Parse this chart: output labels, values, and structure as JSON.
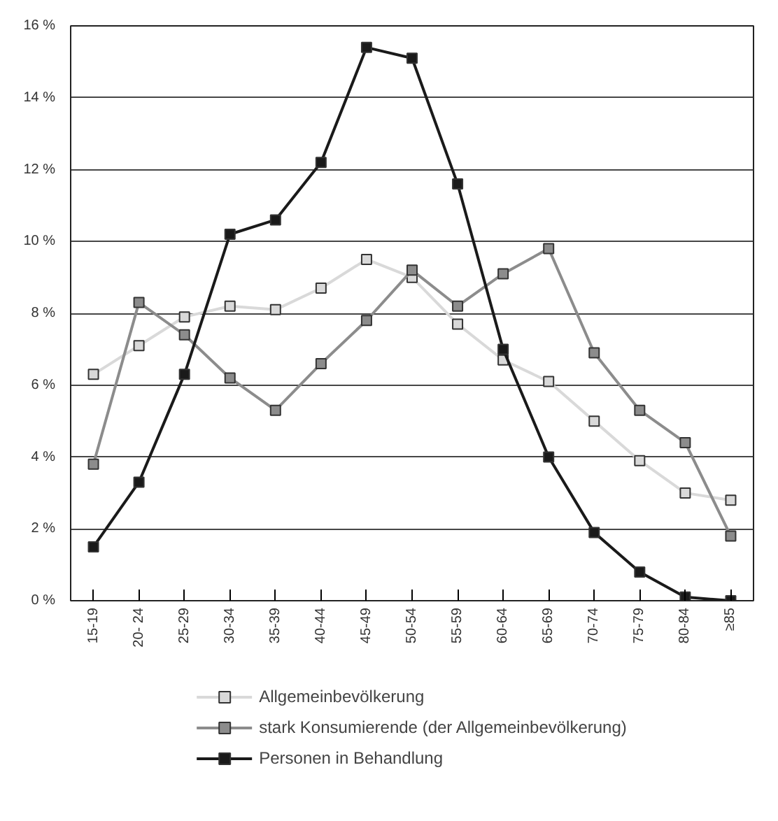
{
  "chart_data": {
    "type": "line",
    "categories": [
      "15-19",
      "20- 24",
      "25-29",
      "30-34",
      "35-39",
      "40-44",
      "45-49",
      "50-54",
      "55-59",
      "60-64",
      "65-69",
      "70-74",
      "75-79",
      "80-84",
      "≥85"
    ],
    "series": [
      {
        "name": "Allgemeinbevölkerung",
        "color": "#d9d9d9",
        "values": [
          6.3,
          7.1,
          7.9,
          8.2,
          8.1,
          8.7,
          9.5,
          9.0,
          7.7,
          6.7,
          6.1,
          5.0,
          3.9,
          3.0,
          2.8
        ]
      },
      {
        "name": "stark Konsumierende (der Allgemeinbevölkerung)",
        "color": "#8c8c8c",
        "values": [
          3.8,
          8.3,
          7.4,
          6.2,
          5.3,
          6.6,
          7.8,
          9.2,
          8.2,
          9.1,
          9.8,
          6.9,
          5.3,
          4.4,
          1.8
        ]
      },
      {
        "name": "Personen in Behandlung",
        "color": "#1a1a1a",
        "values": [
          1.5,
          3.3,
          6.3,
          10.2,
          10.6,
          12.2,
          15.4,
          15.1,
          11.6,
          7.0,
          4.0,
          1.9,
          0.8,
          0.1,
          0.0
        ]
      }
    ],
    "ylim": [
      0,
      16
    ],
    "yticks": [
      {
        "value": 0,
        "label": "0 %"
      },
      {
        "value": 2,
        "label": "2 %"
      },
      {
        "value": 4,
        "label": "4 %"
      },
      {
        "value": 6,
        "label": "6 %"
      },
      {
        "value": 8,
        "label": "8 %"
      },
      {
        "value": 10,
        "label": "10 %"
      },
      {
        "value": 12,
        "label": "12 %"
      },
      {
        "value": 14,
        "label": "14 %"
      },
      {
        "value": 16,
        "label": "16 %"
      }
    ],
    "grid": "y",
    "legend": "bottom",
    "marker": "square",
    "line_style": "solid"
  }
}
